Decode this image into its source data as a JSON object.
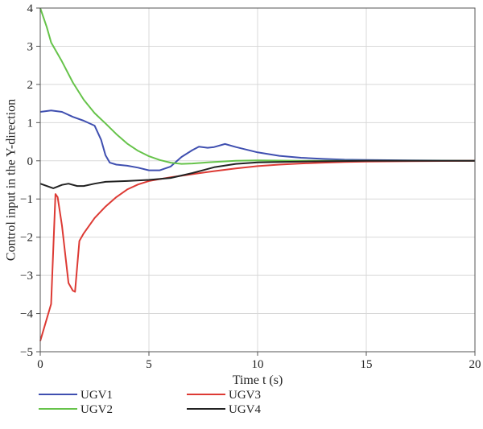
{
  "chart_data": {
    "type": "line",
    "title": "",
    "xlabel": "Time t (s)",
    "ylabel": "Control input in the Y-direction",
    "xlim": [
      0,
      20
    ],
    "ylim": [
      -5,
      4
    ],
    "xticks": [
      0,
      5,
      10,
      15,
      20
    ],
    "yticks": [
      -5,
      -4,
      -3,
      -2,
      -1,
      0,
      1,
      2,
      3,
      4
    ],
    "grid": true,
    "legend_position": "bottom",
    "series": [
      {
        "name": "UGV1",
        "color": "#3f4fb0",
        "points": [
          [
            0,
            1.28
          ],
          [
            0.5,
            1.32
          ],
          [
            1,
            1.28
          ],
          [
            1.5,
            1.15
          ],
          [
            2,
            1.05
          ],
          [
            2.5,
            0.92
          ],
          [
            2.8,
            0.55
          ],
          [
            3.0,
            0.15
          ],
          [
            3.2,
            -0.05
          ],
          [
            3.5,
            -0.1
          ],
          [
            4,
            -0.13
          ],
          [
            4.5,
            -0.18
          ],
          [
            5,
            -0.25
          ],
          [
            5.5,
            -0.25
          ],
          [
            6,
            -0.15
          ],
          [
            6.5,
            0.1
          ],
          [
            7,
            0.28
          ],
          [
            7.3,
            0.37
          ],
          [
            7.7,
            0.34
          ],
          [
            8,
            0.36
          ],
          [
            8.5,
            0.44
          ],
          [
            9,
            0.36
          ],
          [
            10,
            0.22
          ],
          [
            11,
            0.13
          ],
          [
            12,
            0.08
          ],
          [
            13,
            0.05
          ],
          [
            14,
            0.03
          ],
          [
            15,
            0.02
          ],
          [
            17,
            0.01
          ],
          [
            20,
            0
          ]
        ]
      },
      {
        "name": "UGV2",
        "color": "#66c34a",
        "points": [
          [
            0,
            4.0
          ],
          [
            0.3,
            3.5
          ],
          [
            0.5,
            3.1
          ],
          [
            1,
            2.6
          ],
          [
            1.5,
            2.05
          ],
          [
            2,
            1.6
          ],
          [
            2.5,
            1.25
          ],
          [
            3,
            0.98
          ],
          [
            3.5,
            0.7
          ],
          [
            4,
            0.45
          ],
          [
            4.5,
            0.26
          ],
          [
            5,
            0.12
          ],
          [
            5.5,
            0.02
          ],
          [
            6,
            -0.05
          ],
          [
            6.5,
            -0.08
          ],
          [
            7,
            -0.07
          ],
          [
            8,
            -0.03
          ],
          [
            9,
            0
          ],
          [
            10,
            0.01
          ],
          [
            12,
            0
          ],
          [
            20,
            0
          ]
        ]
      },
      {
        "name": "UGV3",
        "color": "#dd3a34",
        "points": [
          [
            0,
            -4.72
          ],
          [
            0.5,
            -3.75
          ],
          [
            0.7,
            -0.87
          ],
          [
            0.8,
            -0.95
          ],
          [
            1.0,
            -1.7
          ],
          [
            1.3,
            -3.2
          ],
          [
            1.5,
            -3.4
          ],
          [
            1.6,
            -3.43
          ],
          [
            1.8,
            -2.1
          ],
          [
            2.0,
            -1.9
          ],
          [
            2.5,
            -1.5
          ],
          [
            3,
            -1.2
          ],
          [
            3.5,
            -0.95
          ],
          [
            4,
            -0.75
          ],
          [
            4.5,
            -0.62
          ],
          [
            5,
            -0.53
          ],
          [
            6,
            -0.43
          ],
          [
            7,
            -0.35
          ],
          [
            8,
            -0.27
          ],
          [
            9,
            -0.2
          ],
          [
            10,
            -0.14
          ],
          [
            11,
            -0.1
          ],
          [
            12,
            -0.07
          ],
          [
            13,
            -0.05
          ],
          [
            14,
            -0.03
          ],
          [
            15,
            -0.02
          ],
          [
            17,
            -0.01
          ],
          [
            20,
            0
          ]
        ]
      },
      {
        "name": "UGV4",
        "color": "#222222",
        "points": [
          [
            0,
            -0.6
          ],
          [
            0.3,
            -0.66
          ],
          [
            0.6,
            -0.72
          ],
          [
            1.0,
            -0.63
          ],
          [
            1.3,
            -0.6
          ],
          [
            1.7,
            -0.66
          ],
          [
            2.0,
            -0.66
          ],
          [
            2.5,
            -0.6
          ],
          [
            3,
            -0.55
          ],
          [
            4,
            -0.53
          ],
          [
            5,
            -0.5
          ],
          [
            6,
            -0.45
          ],
          [
            7,
            -0.32
          ],
          [
            8,
            -0.17
          ],
          [
            9,
            -0.08
          ],
          [
            10,
            -0.04
          ],
          [
            12,
            -0.02
          ],
          [
            15,
            0
          ],
          [
            20,
            0
          ]
        ]
      }
    ]
  }
}
